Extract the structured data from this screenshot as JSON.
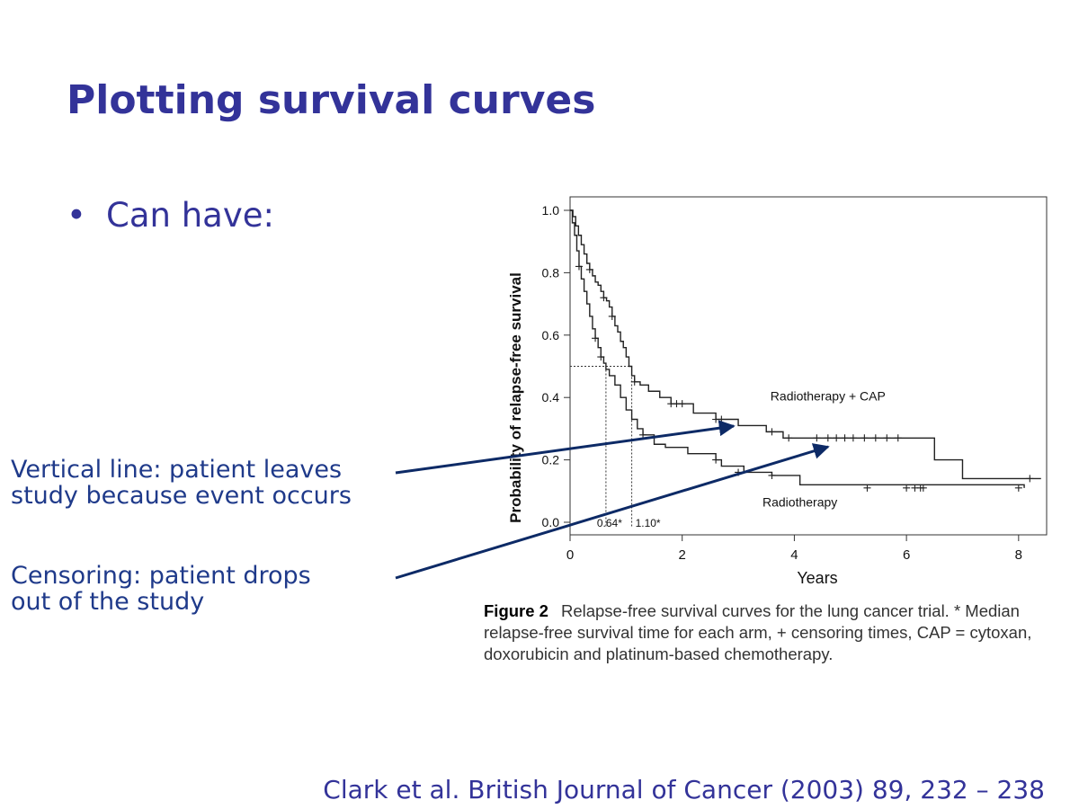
{
  "slide": {
    "title": "Plotting survival curves",
    "bullet_marker": "•",
    "bullet": "Can have:",
    "annotation_1": [
      "Vertical line: patient leaves",
      "study because event occurs"
    ],
    "annotation_2": [
      "Censoring: patient drops",
      "out of the study"
    ],
    "citation": "Clark et al. British Journal of Cancer (2003) 89, 232 – 238",
    "colors": {
      "title": "#333399",
      "annotation_text": "#1f3a8a",
      "arrow": "#0d2a66"
    }
  },
  "figure": {
    "label": "Figure 2",
    "caption_lines": [
      "Relapse-free survival curves for the lung cancer trial. * Median",
      "relapse-free survival time for each arm, + censoring times, CAP = cytoxan,",
      "doxorubicin and platinum-based chemotherapy."
    ]
  },
  "chart_data": {
    "type": "line",
    "xlabel": "Years",
    "ylabel": "Probability of relapse-free survival",
    "xlim": [
      0,
      8.5
    ],
    "ylim": [
      0,
      1.0
    ],
    "x_ticks": [
      0,
      2,
      4,
      6,
      8
    ],
    "x_tick_labels": [
      "0",
      "2",
      "4",
      "6",
      "8"
    ],
    "y_ticks": [
      0,
      0.2,
      0.4,
      0.6,
      0.8,
      1.0
    ],
    "y_tick_labels": [
      "0.0",
      "0.2",
      "0.4",
      "0.6",
      "0.8",
      "1.0"
    ],
    "grid": false,
    "median_line": {
      "y": 0.5,
      "medians": [
        0.64,
        1.1
      ],
      "labels": [
        "0.64*",
        "1.10*"
      ]
    },
    "series": [
      {
        "name": "Radiotherapy + CAP",
        "color": "#222222",
        "steps": [
          [
            0,
            1.0
          ],
          [
            0.05,
            0.98
          ],
          [
            0.1,
            0.95
          ],
          [
            0.15,
            0.92
          ],
          [
            0.2,
            0.89
          ],
          [
            0.25,
            0.86
          ],
          [
            0.3,
            0.83
          ],
          [
            0.35,
            0.81
          ],
          [
            0.4,
            0.79
          ],
          [
            0.45,
            0.77
          ],
          [
            0.5,
            0.76
          ],
          [
            0.55,
            0.74
          ],
          [
            0.6,
            0.72
          ],
          [
            0.65,
            0.71
          ],
          [
            0.7,
            0.69
          ],
          [
            0.75,
            0.66
          ],
          [
            0.8,
            0.63
          ],
          [
            0.85,
            0.61
          ],
          [
            0.9,
            0.58
          ],
          [
            0.95,
            0.56
          ],
          [
            1.0,
            0.53
          ],
          [
            1.05,
            0.5
          ],
          [
            1.1,
            0.47
          ],
          [
            1.15,
            0.45
          ],
          [
            1.25,
            0.44
          ],
          [
            1.4,
            0.42
          ],
          [
            1.6,
            0.4
          ],
          [
            1.8,
            0.38
          ],
          [
            2.2,
            0.35
          ],
          [
            2.6,
            0.33
          ],
          [
            3.0,
            0.31
          ],
          [
            3.5,
            0.29
          ],
          [
            3.8,
            0.27
          ],
          [
            6.5,
            0.2
          ],
          [
            7.0,
            0.14
          ],
          [
            8.4,
            0.14
          ]
        ],
        "censored": [
          [
            0.35,
            0.81
          ],
          [
            0.6,
            0.72
          ],
          [
            0.75,
            0.66
          ],
          [
            1.15,
            0.45
          ],
          [
            1.8,
            0.38
          ],
          [
            1.9,
            0.38
          ],
          [
            2.0,
            0.38
          ],
          [
            2.6,
            0.33
          ],
          [
            2.7,
            0.33
          ],
          [
            3.6,
            0.29
          ],
          [
            3.9,
            0.27
          ],
          [
            4.4,
            0.27
          ],
          [
            4.6,
            0.27
          ],
          [
            4.75,
            0.27
          ],
          [
            4.9,
            0.27
          ],
          [
            5.05,
            0.27
          ],
          [
            5.25,
            0.27
          ],
          [
            5.45,
            0.27
          ],
          [
            5.65,
            0.27
          ],
          [
            5.85,
            0.27
          ],
          [
            8.2,
            0.14
          ]
        ],
        "label_at": [
          4.6,
          0.39
        ]
      },
      {
        "name": "Radiotherapy",
        "color": "#222222",
        "steps": [
          [
            0,
            1.0
          ],
          [
            0.04,
            0.96
          ],
          [
            0.08,
            0.92
          ],
          [
            0.12,
            0.87
          ],
          [
            0.16,
            0.82
          ],
          [
            0.2,
            0.78
          ],
          [
            0.25,
            0.74
          ],
          [
            0.3,
            0.7
          ],
          [
            0.35,
            0.66
          ],
          [
            0.4,
            0.62
          ],
          [
            0.45,
            0.59
          ],
          [
            0.5,
            0.56
          ],
          [
            0.55,
            0.53
          ],
          [
            0.6,
            0.51
          ],
          [
            0.64,
            0.49
          ],
          [
            0.7,
            0.47
          ],
          [
            0.8,
            0.44
          ],
          [
            0.9,
            0.4
          ],
          [
            1.0,
            0.36
          ],
          [
            1.1,
            0.33
          ],
          [
            1.2,
            0.3
          ],
          [
            1.3,
            0.28
          ],
          [
            1.5,
            0.25
          ],
          [
            1.7,
            0.24
          ],
          [
            2.1,
            0.22
          ],
          [
            2.6,
            0.2
          ],
          [
            2.7,
            0.18
          ],
          [
            3.1,
            0.16
          ],
          [
            3.6,
            0.15
          ],
          [
            4.1,
            0.12
          ],
          [
            8.1,
            0.11
          ]
        ],
        "censored": [
          [
            0.16,
            0.82
          ],
          [
            0.45,
            0.59
          ],
          [
            0.55,
            0.53
          ],
          [
            1.3,
            0.28
          ],
          [
            2.6,
            0.2
          ],
          [
            3.0,
            0.16
          ],
          [
            3.6,
            0.15
          ],
          [
            5.3,
            0.11
          ],
          [
            6.0,
            0.11
          ],
          [
            6.15,
            0.11
          ],
          [
            6.25,
            0.11
          ],
          [
            6.3,
            0.11
          ],
          [
            8.0,
            0.11
          ]
        ],
        "label_at": [
          4.1,
          0.05
        ]
      }
    ]
  }
}
